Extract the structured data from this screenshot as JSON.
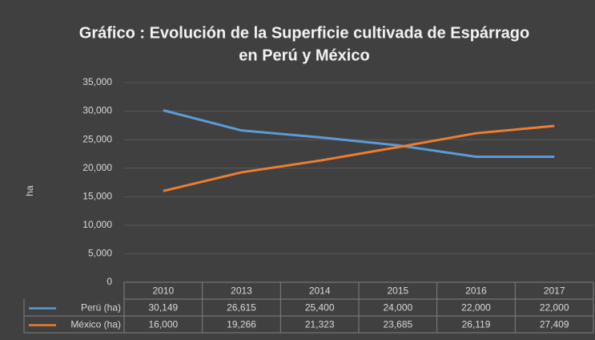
{
  "chart_data": {
    "type": "line",
    "title": [
      "Gráfico  : Evolución de la Superficie cultivada de Espárrago",
      "en Perú y México"
    ],
    "y_label": "ha",
    "categories": [
      "2010",
      "2013",
      "2014",
      "2015",
      "2016",
      "2017"
    ],
    "series": [
      {
        "name": "Perú (ha)",
        "color": "#5b9bd5",
        "values": [
          30149,
          26615,
          25400,
          24000,
          22000,
          22000
        ],
        "value_labels": [
          "30,149",
          "26,615",
          "25,400",
          "24,000",
          "22,000",
          "22,000"
        ]
      },
      {
        "name": "México (ha)",
        "color": "#ed7d31",
        "values": [
          16000,
          19266,
          21323,
          23685,
          26119,
          27409
        ],
        "value_labels": [
          "16,000",
          "19,266",
          "21,323",
          "23,685",
          "26,119",
          "27,409"
        ]
      }
    ],
    "ylim": [
      0,
      35000
    ],
    "yticks": [
      0,
      {
        "value": 5000,
        "label": "5,000"
      },
      {
        "value": 10000,
        "label": "10,000"
      },
      {
        "value": 15000,
        "label": "15,000"
      },
      {
        "value": 20000,
        "label": "20,000"
      },
      {
        "value": 25000,
        "label": "25,000"
      },
      {
        "value": 30000,
        "label": "30,000"
      },
      {
        "value": 35000,
        "label": "35,000"
      }
    ],
    "grid": true,
    "data_table": true
  }
}
